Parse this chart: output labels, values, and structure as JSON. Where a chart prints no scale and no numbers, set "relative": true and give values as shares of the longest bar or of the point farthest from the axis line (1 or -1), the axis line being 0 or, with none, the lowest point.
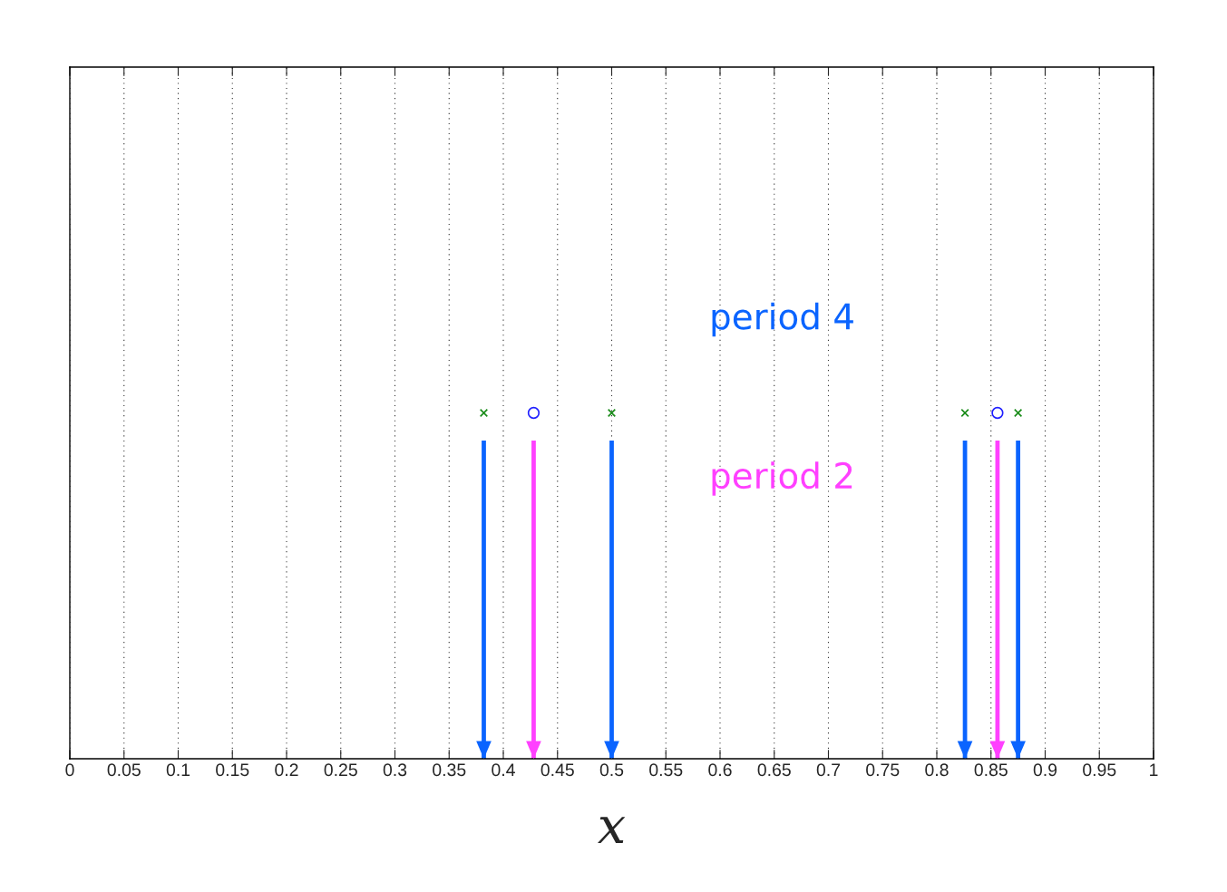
{
  "chart_data": {
    "type": "scatter",
    "relative": true,
    "xlabel": "x",
    "xlim": [
      0,
      1
    ],
    "xticks": [
      0,
      0.05,
      0.1,
      0.15,
      0.2,
      0.25,
      0.3,
      0.35,
      0.4,
      0.45,
      0.5,
      0.55,
      0.6,
      0.65,
      0.7,
      0.75,
      0.8,
      0.85,
      0.9,
      0.95,
      1
    ],
    "grid": "x",
    "tick_labels": "x",
    "series": [
      {
        "marker": "cross",
        "color": "#1a8c1a",
        "x": [
          0.382,
          0.5,
          0.826,
          0.875
        ],
        "values": [
          1,
          1,
          1,
          1
        ]
      },
      {
        "marker": "circle",
        "color": "#2020ff",
        "x": [
          0.428,
          0.856
        ],
        "values": [
          1,
          1
        ]
      },
      {
        "type": "bar",
        "name": "period 4",
        "color": "#0a64ff",
        "x": [
          0.382,
          0.5,
          0.826,
          0.875
        ],
        "values": [
          0.92,
          0.92,
          0.92,
          0.92
        ]
      },
      {
        "type": "bar",
        "name": "period 2",
        "color": "#ff40ff",
        "x": [
          0.428,
          0.856
        ],
        "values": [
          0.92,
          0.92
        ]
      }
    ]
  }
}
